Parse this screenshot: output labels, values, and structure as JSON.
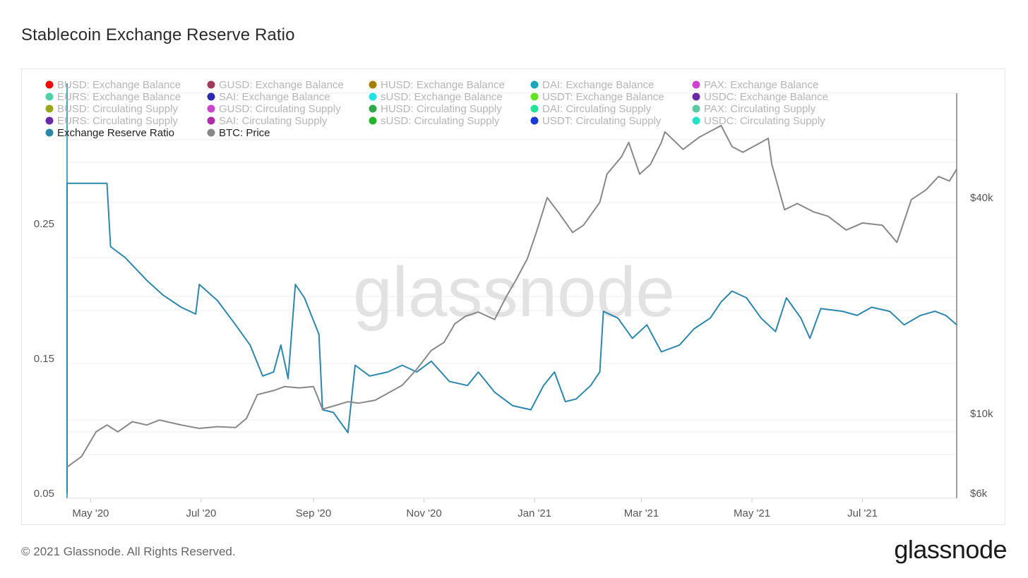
{
  "header": {
    "title": "Stablecoin Exchange Reserve Ratio"
  },
  "footer": {
    "copyright": "© 2021 Glassnode. All Rights Reserved.",
    "brand": "glassnode",
    "watermark": "glassnode"
  },
  "colors": {
    "ratio": "#2e86ab",
    "price": "#888888",
    "grid": "#ececec",
    "muted_legend": "#b5b5b5",
    "active_legend": "#222222"
  },
  "chart_data": {
    "type": "line",
    "title": "Stablecoin Exchange Reserve Ratio",
    "x_ticks": [
      "May '20",
      "Jul '20",
      "Sep '20",
      "Nov '20",
      "Jan '21",
      "Mar '21",
      "May '21",
      "Jul '21"
    ],
    "y_left": {
      "ticks": [
        "0.25",
        "0.15",
        "0.05"
      ],
      "range": [
        0.05,
        0.25
      ]
    },
    "y_right": {
      "ticks": [
        "$40k",
        "$10k",
        "$6k"
      ],
      "scale": "log"
    },
    "grid": true,
    "legend_position": "top-left",
    "legend": [
      {
        "name": "BUSD: Exchange Balance",
        "color": "#ff0000",
        "active": false
      },
      {
        "name": "GUSD: Exchange Balance",
        "color": "#a23b5a",
        "active": false
      },
      {
        "name": "HUSD: Exchange Balance",
        "color": "#a67c00",
        "active": false
      },
      {
        "name": "DAI: Exchange Balance",
        "color": "#1aa6b7",
        "active": false
      },
      {
        "name": "PAX: Exchange Balance",
        "color": "#cc44cc",
        "active": false
      },
      {
        "name": "EURS: Exchange Balance",
        "color": "#4fd1a5",
        "active": false
      },
      {
        "name": "SAI: Exchange Balance",
        "color": "#2b2bb0",
        "active": false
      },
      {
        "name": "sUSD: Exchange Balance",
        "color": "#22e3e3",
        "active": false
      },
      {
        "name": "USDT: Exchange Balance",
        "color": "#66e022",
        "active": false
      },
      {
        "name": "USDC: Exchange Balance",
        "color": "#6a2aa8",
        "active": false
      },
      {
        "name": "BUSD: Circulating Supply",
        "color": "#9aa61a",
        "active": false
      },
      {
        "name": "GUSD: Circulating Supply",
        "color": "#cc44cc",
        "active": false
      },
      {
        "name": "HUSD: Circulating Supply",
        "color": "#2ea84a",
        "active": false
      },
      {
        "name": "DAI: Circulating Supply",
        "color": "#22e39a",
        "active": false
      },
      {
        "name": "PAX: Circulating Supply",
        "color": "#5cc9a0",
        "active": false
      },
      {
        "name": "EURS: Circulating Supply",
        "color": "#6a2aa8",
        "active": false
      },
      {
        "name": "SAI: Circulating Supply",
        "color": "#b02ba8",
        "active": false
      },
      {
        "name": "sUSD: Circulating Supply",
        "color": "#22b52a",
        "active": false
      },
      {
        "name": "USDT: Circulating Supply",
        "color": "#1a3ad6",
        "active": false
      },
      {
        "name": "USDC: Circulating Supply",
        "color": "#22e3c4",
        "active": false
      },
      {
        "name": "Exchange Reserve Ratio",
        "color": "#2e86ab",
        "active": true
      },
      {
        "name": "BTC: Price",
        "color": "#888888",
        "active": true
      }
    ],
    "series": [
      {
        "name": "Exchange Reserve Ratio",
        "color": "#2e86ab",
        "axis": "left",
        "points": [
          [
            "2020-04-18",
            0.05
          ],
          [
            "2020-04-18",
            0.28
          ],
          [
            "2020-05-10",
            0.28
          ],
          [
            "2020-05-12",
            0.233
          ],
          [
            "2020-05-20",
            0.225
          ],
          [
            "2020-06-01",
            0.208
          ],
          [
            "2020-06-10",
            0.197
          ],
          [
            "2020-06-20",
            0.188
          ],
          [
            "2020-06-28",
            0.183
          ],
          [
            "2020-06-30",
            0.205
          ],
          [
            "2020-07-10",
            0.193
          ],
          [
            "2020-07-20",
            0.175
          ],
          [
            "2020-07-28",
            0.16
          ],
          [
            "2020-08-04",
            0.137
          ],
          [
            "2020-08-10",
            0.14
          ],
          [
            "2020-08-14",
            0.16
          ],
          [
            "2020-08-18",
            0.135
          ],
          [
            "2020-08-22",
            0.205
          ],
          [
            "2020-08-27",
            0.195
          ],
          [
            "2020-09-04",
            0.168
          ],
          [
            "2020-09-06",
            0.112
          ],
          [
            "2020-09-12",
            0.11
          ],
          [
            "2020-09-20",
            0.095
          ],
          [
            "2020-09-24",
            0.145
          ],
          [
            "2020-10-02",
            0.137
          ],
          [
            "2020-10-12",
            0.14
          ],
          [
            "2020-10-20",
            0.145
          ],
          [
            "2020-10-28",
            0.14
          ],
          [
            "2020-11-05",
            0.148
          ],
          [
            "2020-11-15",
            0.133
          ],
          [
            "2020-11-25",
            0.13
          ],
          [
            "2020-12-01",
            0.14
          ],
          [
            "2020-12-10",
            0.125
          ],
          [
            "2020-12-20",
            0.115
          ],
          [
            "2020-12-30",
            0.112
          ],
          [
            "2021-01-06",
            0.13
          ],
          [
            "2021-01-12",
            0.14
          ],
          [
            "2021-01-18",
            0.118
          ],
          [
            "2021-01-24",
            0.12
          ],
          [
            "2021-02-01",
            0.13
          ],
          [
            "2021-02-06",
            0.14
          ],
          [
            "2021-02-08",
            0.185
          ],
          [
            "2021-02-16",
            0.18
          ],
          [
            "2021-02-24",
            0.165
          ],
          [
            "2021-03-04",
            0.175
          ],
          [
            "2021-03-12",
            0.155
          ],
          [
            "2021-03-22",
            0.16
          ],
          [
            "2021-03-30",
            0.172
          ],
          [
            "2021-04-08",
            0.18
          ],
          [
            "2021-04-14",
            0.192
          ],
          [
            "2021-04-20",
            0.2
          ],
          [
            "2021-04-28",
            0.195
          ],
          [
            "2021-05-06",
            0.18
          ],
          [
            "2021-05-14",
            0.17
          ],
          [
            "2021-05-20",
            0.195
          ],
          [
            "2021-05-28",
            0.18
          ],
          [
            "2021-06-02",
            0.165
          ],
          [
            "2021-06-08",
            0.187
          ],
          [
            "2021-06-20",
            0.185
          ],
          [
            "2021-06-28",
            0.182
          ],
          [
            "2021-07-06",
            0.188
          ],
          [
            "2021-07-16",
            0.185
          ],
          [
            "2021-07-24",
            0.175
          ],
          [
            "2021-08-02",
            0.182
          ],
          [
            "2021-08-10",
            0.185
          ],
          [
            "2021-08-16",
            0.182
          ],
          [
            "2021-08-22",
            0.175
          ]
        ]
      },
      {
        "name": "BTC: Price",
        "color": "#888888",
        "axis": "right",
        "points": [
          [
            "2020-04-18",
            7100
          ],
          [
            "2020-04-26",
            7600
          ],
          [
            "2020-05-04",
            8900
          ],
          [
            "2020-05-10",
            9300
          ],
          [
            "2020-05-16",
            8900
          ],
          [
            "2020-05-24",
            9500
          ],
          [
            "2020-06-01",
            9300
          ],
          [
            "2020-06-08",
            9600
          ],
          [
            "2020-06-20",
            9300
          ],
          [
            "2020-06-30",
            9100
          ],
          [
            "2020-07-10",
            9200
          ],
          [
            "2020-07-20",
            9150
          ],
          [
            "2020-07-26",
            9700
          ],
          [
            "2020-08-01",
            11300
          ],
          [
            "2020-08-10",
            11600
          ],
          [
            "2020-08-16",
            11900
          ],
          [
            "2020-08-24",
            11800
          ],
          [
            "2020-09-01",
            11900
          ],
          [
            "2020-09-06",
            10300
          ],
          [
            "2020-09-12",
            10500
          ],
          [
            "2020-09-20",
            10800
          ],
          [
            "2020-09-26",
            10700
          ],
          [
            "2020-10-05",
            10900
          ],
          [
            "2020-10-12",
            11400
          ],
          [
            "2020-10-20",
            12000
          ],
          [
            "2020-10-28",
            13300
          ],
          [
            "2020-11-05",
            15000
          ],
          [
            "2020-11-12",
            15800
          ],
          [
            "2020-11-18",
            17800
          ],
          [
            "2020-11-24",
            18700
          ],
          [
            "2020-12-01",
            19200
          ],
          [
            "2020-12-10",
            18300
          ],
          [
            "2020-12-16",
            21000
          ],
          [
            "2020-12-22",
            23700
          ],
          [
            "2020-12-28",
            27000
          ],
          [
            "2021-01-02",
            32000
          ],
          [
            "2021-01-08",
            40000
          ],
          [
            "2021-01-14",
            36500
          ],
          [
            "2021-01-22",
            32000
          ],
          [
            "2021-01-28",
            33500
          ],
          [
            "2021-02-06",
            38800
          ],
          [
            "2021-02-10",
            46500
          ],
          [
            "2021-02-18",
            52000
          ],
          [
            "2021-02-22",
            57000
          ],
          [
            "2021-02-28",
            46500
          ],
          [
            "2021-03-06",
            49500
          ],
          [
            "2021-03-12",
            57000
          ],
          [
            "2021-03-14",
            61000
          ],
          [
            "2021-03-24",
            54500
          ],
          [
            "2021-04-02",
            59000
          ],
          [
            "2021-04-14",
            63500
          ],
          [
            "2021-04-20",
            55500
          ],
          [
            "2021-04-26",
            53500
          ],
          [
            "2021-05-06",
            57000
          ],
          [
            "2021-05-10",
            58500
          ],
          [
            "2021-05-12",
            49500
          ],
          [
            "2021-05-19",
            37000
          ],
          [
            "2021-05-26",
            38500
          ],
          [
            "2021-06-04",
            36500
          ],
          [
            "2021-06-12",
            35500
          ],
          [
            "2021-06-22",
            32500
          ],
          [
            "2021-07-01",
            34000
          ],
          [
            "2021-07-12",
            33500
          ],
          [
            "2021-07-20",
            30000
          ],
          [
            "2021-07-28",
            39500
          ],
          [
            "2021-08-05",
            42000
          ],
          [
            "2021-08-12",
            45800
          ],
          [
            "2021-08-18",
            44500
          ],
          [
            "2021-08-22",
            48000
          ]
        ]
      }
    ]
  }
}
